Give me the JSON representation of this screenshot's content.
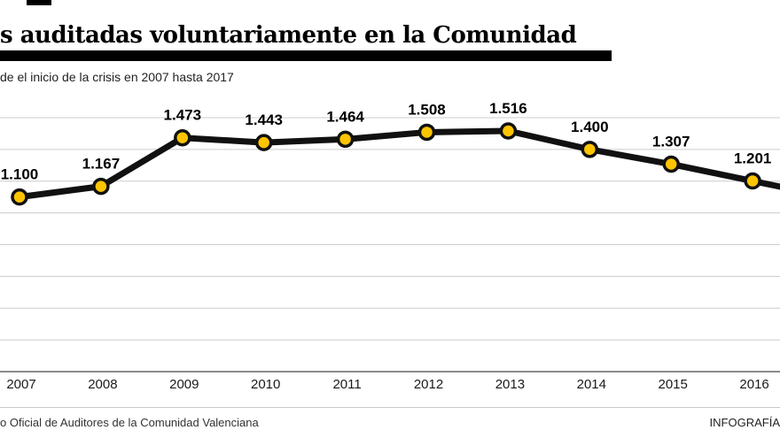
{
  "header": {
    "title": "s auditadas voluntariamente en la Comunidad",
    "subtitle": "de el inicio de la crisis en 2007 hasta 2017"
  },
  "footer": {
    "source": "o Oficial de Auditores de la Comunidad Valenciana",
    "credit": "INFOGRAFÍA"
  },
  "chart_data": {
    "type": "line",
    "title": "s auditadas voluntariamente en la Comunidad",
    "subtitle": "de el inicio de la crisis en 2007 hasta 2017",
    "x": [
      "2007",
      "2008",
      "2009",
      "2010",
      "2011",
      "2012",
      "2013",
      "2014",
      "2015",
      "2016"
    ],
    "values": [
      1100,
      1167,
      1473,
      1443,
      1464,
      1508,
      1516,
      1400,
      1307,
      1201
    ],
    "value_labels": [
      "1.100",
      "1.167",
      "1.473",
      "1.443",
      "1.464",
      "1.508",
      "1.516",
      "1.400",
      "1.307",
      "1.201"
    ],
    "ylim": [
      0,
      1700
    ],
    "grid_step": 200,
    "grid": "horizontal",
    "legend": "none",
    "clipped_left": true,
    "clipped_right": true,
    "colors": {
      "line": "#111111",
      "marker_fill": "#fdc400",
      "marker_stroke": "#111111",
      "grid": "#cccccc",
      "axis": "#8a8a8a",
      "title_bar": "#000000"
    }
  }
}
